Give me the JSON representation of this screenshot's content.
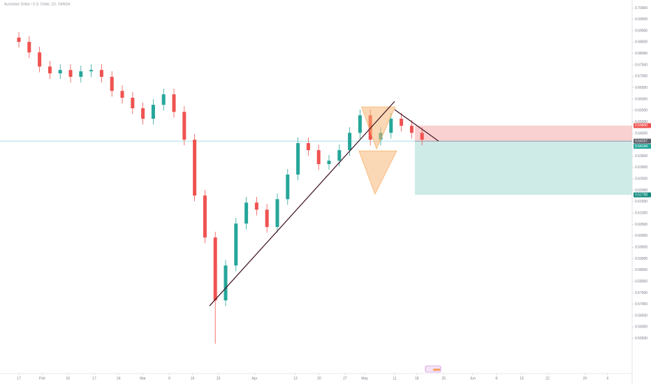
{
  "chart_data": {
    "type": "candlestick",
    "title": "Australian Dollar / U.S. Dollar, 1D, OANDA",
    "x": [
      0,
      2,
      4,
      6,
      8,
      10,
      12,
      14,
      16,
      18,
      20,
      22,
      24,
      26,
      28,
      30,
      32,
      34,
      36,
      38,
      40,
      42,
      44,
      46,
      48,
      50,
      52,
      54,
      56,
      58,
      60,
      62,
      64,
      66,
      68,
      70,
      72,
      74,
      76,
      78
    ],
    "open": [
      0.687,
      0.6851,
      0.6805,
      0.6743,
      0.6713,
      0.6728,
      0.6698,
      0.6722,
      0.6728,
      0.6698,
      0.6636,
      0.6606,
      0.656,
      0.6514,
      0.6575,
      0.6621,
      0.6544,
      0.6422,
      0.6177,
      0.5993,
      0.5717,
      0.587,
      0.6054,
      0.6146,
      0.6115,
      0.6039,
      0.6161,
      0.6269,
      0.6407,
      0.6376,
      0.6315,
      0.633,
      0.6376,
      0.6452,
      0.6529,
      0.6422,
      0.6452,
      0.6514,
      0.6483,
      0.6452
    ],
    "high": [
      0.6895,
      0.6876,
      0.683,
      0.6768,
      0.6753,
      0.6753,
      0.6747,
      0.6753,
      0.6753,
      0.6723,
      0.6661,
      0.6631,
      0.6585,
      0.66,
      0.6646,
      0.6646,
      0.6569,
      0.6447,
      0.6202,
      0.6018,
      0.5895,
      0.6079,
      0.6171,
      0.6171,
      0.614,
      0.6186,
      0.6294,
      0.6432,
      0.6432,
      0.6401,
      0.6355,
      0.6401,
      0.6477,
      0.6554,
      0.6554,
      0.6477,
      0.6539,
      0.6539,
      0.6508,
      0.6477
    ],
    "low": [
      0.6826,
      0.678,
      0.6718,
      0.6688,
      0.6688,
      0.6673,
      0.6673,
      0.6697,
      0.6673,
      0.6611,
      0.6581,
      0.6535,
      0.6489,
      0.6489,
      0.655,
      0.6519,
      0.6397,
      0.6152,
      0.5968,
      0.5527,
      0.5692,
      0.5845,
      0.6029,
      0.609,
      0.6014,
      0.6014,
      0.6136,
      0.6244,
      0.6351,
      0.629,
      0.629,
      0.6305,
      0.6351,
      0.6427,
      0.6397,
      0.6397,
      0.6427,
      0.6458,
      0.6427,
      0.6397
    ],
    "close": [
      0.6851,
      0.6805,
      0.6743,
      0.6713,
      0.6728,
      0.6698,
      0.6722,
      0.6728,
      0.6698,
      0.6636,
      0.6606,
      0.656,
      0.6514,
      0.6575,
      0.6621,
      0.6544,
      0.6422,
      0.6177,
      0.5993,
      0.5717,
      0.587,
      0.6054,
      0.6146,
      0.6115,
      0.6039,
      0.6161,
      0.6269,
      0.6407,
      0.6376,
      0.6315,
      0.633,
      0.6376,
      0.6452,
      0.6529,
      0.6422,
      0.6452,
      0.6514,
      0.6483,
      0.6452,
      0.6422
    ],
    "up_color": "#26a69a",
    "down_color": "#ef5350",
    "xlim": [
      -3.65,
      118.65
    ],
    "ylim": [
      0.5396,
      0.7035
    ],
    "xticks": [
      {
        "value": 0,
        "label": "17"
      },
      {
        "value": 4.5,
        "label": "Feb"
      },
      {
        "value": 9.5,
        "label": "10"
      },
      {
        "value": 14.6,
        "label": "17"
      },
      {
        "value": 19.3,
        "label": "24"
      },
      {
        "value": 24,
        "label": "Mar"
      },
      {
        "value": 29.1,
        "label": "9"
      },
      {
        "value": 33.6,
        "label": "16"
      },
      {
        "value": 38.6,
        "label": "23"
      },
      {
        "value": 45.6,
        "label": "Apr"
      },
      {
        "value": 53.5,
        "label": "13"
      },
      {
        "value": 58.1,
        "label": "20"
      },
      {
        "value": 63.1,
        "label": "27"
      },
      {
        "value": 66.9,
        "label": "May"
      },
      {
        "value": 72.7,
        "label": "11"
      },
      {
        "value": 77,
        "label": "18"
      },
      {
        "value": 82.2,
        "label": "25"
      },
      {
        "value": 87.8,
        "label": "Jun"
      },
      {
        "value": 92.4,
        "label": "8"
      },
      {
        "value": 97.3,
        "label": "15"
      },
      {
        "value": 102.3,
        "label": "22"
      },
      {
        "value": 109.5,
        "label": "29"
      },
      {
        "value": 113.9,
        "label": "6"
      }
    ],
    "yticks": [
      {
        "value": 0.555,
        "label": "0.55500"
      },
      {
        "value": 0.56,
        "label": "0.56000"
      },
      {
        "value": 0.565,
        "label": "0.56500"
      },
      {
        "value": 0.57,
        "label": "0.57000"
      },
      {
        "value": 0.575,
        "label": "0.57500"
      },
      {
        "value": 0.58,
        "label": "0.58000"
      },
      {
        "value": 0.585,
        "label": "0.58500"
      },
      {
        "value": 0.59,
        "label": "0.59000"
      },
      {
        "value": 0.595,
        "label": "0.59500"
      },
      {
        "value": 0.6,
        "label": "0.60000"
      },
      {
        "value": 0.605,
        "label": "0.60500"
      },
      {
        "value": 0.61,
        "label": "0.61000"
      },
      {
        "value": 0.615,
        "label": "0.61500"
      },
      {
        "value": 0.62,
        "label": "0.62000"
      },
      {
        "value": 0.625,
        "label": "0.62500"
      },
      {
        "value": 0.63,
        "label": "0.63000"
      },
      {
        "value": 0.635,
        "label": "0.63500"
      },
      {
        "value": 0.64,
        "label": "0.64000"
      },
      {
        "value": 0.645,
        "label": "0.64500"
      },
      {
        "value": 0.65,
        "label": "0.65000"
      },
      {
        "value": 0.655,
        "label": "0.65500"
      },
      {
        "value": 0.66,
        "label": "0.66000"
      },
      {
        "value": 0.665,
        "label": "0.66500"
      },
      {
        "value": 0.67,
        "label": "0.67000"
      },
      {
        "value": 0.675,
        "label": "0.67500"
      },
      {
        "value": 0.68,
        "label": "0.68000"
      },
      {
        "value": 0.685,
        "label": "0.68500"
      },
      {
        "value": 0.69,
        "label": "0.69000"
      },
      {
        "value": 0.695,
        "label": "0.69500"
      },
      {
        "value": 0.7,
        "label": "0.70000"
      }
    ],
    "trendlines": [
      {
        "x": [
          36.9,
          72.7
        ],
        "y": [
          0.5693,
          0.659
        ],
        "color": "#3b0a1e"
      },
      {
        "x": [
          72.7,
          81.2
        ],
        "y": [
          0.6554,
          0.6416
        ],
        "color": "#3b0a1e"
      }
    ],
    "triangles": [
      {
        "x": [
          66.3,
          72.8,
          69.2
        ],
        "y": [
          0.6566,
          0.6566,
          0.6382
        ],
        "color": "#f7b26b"
      },
      {
        "x": [
          65.8,
          73.1,
          68.9
        ],
        "y": [
          0.6373,
          0.6373,
          0.6183
        ],
        "color": "#f7b26b"
      }
    ],
    "position": {
      "start": 76.6,
      "entry": 0.64157,
      "stop": 0.6484,
      "target": 0.61798,
      "stop_color": "#f8c5c6",
      "target_color": "#c9e9e6",
      "line_color": "#8fd3e0"
    },
    "price_tags": [
      {
        "value": 0.6484,
        "label": "0.64840",
        "color": "#ef5350"
      },
      {
        "value": 0.64157,
        "label": "0.64157",
        "color": "#5d606b"
      },
      {
        "value": 0.64144,
        "label": "0.64144",
        "color": "#26a69a"
      },
      {
        "value": 0.61798,
        "label": "0.61798",
        "color": "#138a7e"
      }
    ]
  }
}
